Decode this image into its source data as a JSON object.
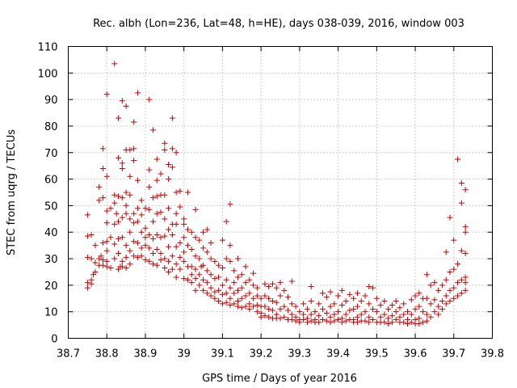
{
  "chart_data": {
    "type": "scatter",
    "title": "Rec. albh (Lon=236, Lat=48, h=HE), days 038-039, 2016, window 003",
    "xlabel": "GPS time / Days of year 2016",
    "ylabel": "STEC from uqrg / TECUs",
    "xlim": [
      38.7,
      39.8
    ],
    "ylim": [
      0,
      110
    ],
    "x_ticks": [
      "38.7",
      "38.8",
      "38.9",
      "39",
      "39.1",
      "39.2",
      "39.3",
      "39.4",
      "39.5",
      "39.6",
      "39.7",
      "39.8"
    ],
    "y_ticks": [
      "0",
      "10",
      "20",
      "30",
      "40",
      "50",
      "60",
      "70",
      "80",
      "90",
      "100",
      "110"
    ],
    "grid": true,
    "marker": "+",
    "color": "#cc0000",
    "points": [
      [
        38.75,
        46.5
      ],
      [
        38.75,
        38.5
      ],
      [
        38.75,
        30.5
      ],
      [
        38.75,
        21
      ],
      [
        38.75,
        19
      ],
      [
        38.76,
        39
      ],
      [
        38.76,
        30
      ],
      [
        38.76,
        22
      ],
      [
        38.76,
        20.5
      ],
      [
        38.765,
        24
      ],
      [
        38.77,
        35
      ],
      [
        38.77,
        28.5
      ],
      [
        38.77,
        25
      ],
      [
        38.78,
        57
      ],
      [
        38.78,
        52
      ],
      [
        38.78,
        30
      ],
      [
        38.78,
        27.5
      ],
      [
        38.785,
        31
      ],
      [
        38.79,
        71.5
      ],
      [
        38.79,
        64
      ],
      [
        38.79,
        53
      ],
      [
        38.79,
        36
      ],
      [
        38.79,
        29.5
      ],
      [
        38.79,
        27.5
      ],
      [
        38.8,
        92
      ],
      [
        38.8,
        61
      ],
      [
        38.8,
        48
      ],
      [
        38.8,
        43.5
      ],
      [
        38.8,
        36.5
      ],
      [
        38.8,
        33
      ],
      [
        38.8,
        29
      ],
      [
        38.8,
        27
      ],
      [
        38.81,
        49
      ],
      [
        38.81,
        38
      ],
      [
        38.81,
        26.5
      ],
      [
        38.82,
        103.5
      ],
      [
        38.82,
        54
      ],
      [
        38.82,
        51
      ],
      [
        38.82,
        43
      ],
      [
        38.82,
        35.5
      ],
      [
        38.82,
        30
      ],
      [
        38.825,
        47
      ],
      [
        38.83,
        83
      ],
      [
        38.83,
        68
      ],
      [
        38.83,
        53.5
      ],
      [
        38.83,
        44
      ],
      [
        38.83,
        37.5
      ],
      [
        38.83,
        32
      ],
      [
        38.83,
        26
      ],
      [
        38.835,
        27
      ],
      [
        38.84,
        89.5
      ],
      [
        38.84,
        66
      ],
      [
        38.84,
        64
      ],
      [
        38.84,
        53
      ],
      [
        38.84,
        45.5
      ],
      [
        38.84,
        38
      ],
      [
        38.84,
        29
      ],
      [
        38.84,
        27
      ],
      [
        38.85,
        87.5
      ],
      [
        38.85,
        71
      ],
      [
        38.85,
        55
      ],
      [
        38.85,
        50
      ],
      [
        38.85,
        47
      ],
      [
        38.85,
        35
      ],
      [
        38.85,
        30.5
      ],
      [
        38.85,
        26.5
      ],
      [
        38.86,
        71
      ],
      [
        38.86,
        61
      ],
      [
        38.86,
        54
      ],
      [
        38.86,
        45
      ],
      [
        38.86,
        40
      ],
      [
        38.86,
        33
      ],
      [
        38.86,
        28
      ],
      [
        38.87,
        81.5
      ],
      [
        38.87,
        71.5
      ],
      [
        38.87,
        67
      ],
      [
        38.87,
        47
      ],
      [
        38.87,
        43.5
      ],
      [
        38.87,
        36.5
      ],
      [
        38.87,
        31
      ],
      [
        38.88,
        92.5
      ],
      [
        38.88,
        59.5
      ],
      [
        38.88,
        49
      ],
      [
        38.88,
        44
      ],
      [
        38.88,
        36
      ],
      [
        38.88,
        30.5
      ],
      [
        38.89,
        52
      ],
      [
        38.89,
        46.5
      ],
      [
        38.89,
        40
      ],
      [
        38.89,
        34
      ],
      [
        38.89,
        31
      ],
      [
        38.9,
        49
      ],
      [
        38.9,
        41.5
      ],
      [
        38.9,
        38
      ],
      [
        38.9,
        35
      ],
      [
        38.9,
        29.5
      ],
      [
        38.91,
        90
      ],
      [
        38.91,
        63.5
      ],
      [
        38.91,
        57
      ],
      [
        38.91,
        48.5
      ],
      [
        38.91,
        39
      ],
      [
        38.91,
        34
      ],
      [
        38.91,
        29
      ],
      [
        38.92,
        78.5
      ],
      [
        38.92,
        53
      ],
      [
        38.92,
        44
      ],
      [
        38.92,
        37.5
      ],
      [
        38.92,
        32
      ],
      [
        38.92,
        28
      ],
      [
        38.93,
        67.5
      ],
      [
        38.93,
        59.5
      ],
      [
        38.93,
        53.5
      ],
      [
        38.93,
        47
      ],
      [
        38.93,
        39
      ],
      [
        38.93,
        33.5
      ],
      [
        38.93,
        27.5
      ],
      [
        38.94,
        62
      ],
      [
        38.94,
        54
      ],
      [
        38.94,
        47.5
      ],
      [
        38.94,
        38
      ],
      [
        38.94,
        32
      ],
      [
        38.94,
        29.5
      ],
      [
        38.95,
        73.5
      ],
      [
        38.95,
        71
      ],
      [
        38.95,
        54
      ],
      [
        38.95,
        45
      ],
      [
        38.95,
        38.5
      ],
      [
        38.95,
        30
      ],
      [
        38.95,
        26.5
      ],
      [
        38.96,
        65.5
      ],
      [
        38.96,
        60
      ],
      [
        38.96,
        49
      ],
      [
        38.96,
        41
      ],
      [
        38.96,
        34.5
      ],
      [
        38.96,
        29
      ],
      [
        38.96,
        25
      ],
      [
        38.97,
        83
      ],
      [
        38.97,
        71.5
      ],
      [
        38.97,
        64.5
      ],
      [
        38.97,
        43
      ],
      [
        38.97,
        39
      ],
      [
        38.97,
        31
      ],
      [
        38.97,
        26
      ],
      [
        38.98,
        70
      ],
      [
        38.98,
        55
      ],
      [
        38.98,
        47
      ],
      [
        38.98,
        43
      ],
      [
        38.98,
        34.5
      ],
      [
        38.98,
        28
      ],
      [
        38.98,
        23
      ],
      [
        38.99,
        55.5
      ],
      [
        38.99,
        49.5
      ],
      [
        38.99,
        36
      ],
      [
        38.99,
        30.5
      ],
      [
        38.99,
        26
      ],
      [
        39.0,
        45
      ],
      [
        39.0,
        43
      ],
      [
        39.0,
        38
      ],
      [
        39.0,
        32.5
      ],
      [
        39.0,
        29
      ],
      [
        39.0,
        22.5
      ],
      [
        39.01,
        55
      ],
      [
        39.01,
        41
      ],
      [
        39.01,
        35
      ],
      [
        39.01,
        27
      ],
      [
        39.01,
        22
      ],
      [
        39.02,
        40
      ],
      [
        39.02,
        33.5
      ],
      [
        39.02,
        27
      ],
      [
        39.02,
        24
      ],
      [
        39.02,
        21
      ],
      [
        39.03,
        48.5
      ],
      [
        39.03,
        38
      ],
      [
        39.03,
        31
      ],
      [
        39.03,
        26
      ],
      [
        39.03,
        22.5
      ],
      [
        39.03,
        18
      ],
      [
        39.04,
        37
      ],
      [
        39.04,
        30
      ],
      [
        39.04,
        24
      ],
      [
        39.04,
        20
      ],
      [
        39.045,
        27
      ],
      [
        39.05,
        40
      ],
      [
        39.05,
        34
      ],
      [
        39.05,
        27.5
      ],
      [
        39.05,
        22
      ],
      [
        39.05,
        18
      ],
      [
        39.06,
        41
      ],
      [
        39.06,
        32.5
      ],
      [
        39.06,
        25.5
      ],
      [
        39.06,
        21
      ],
      [
        39.06,
        17
      ],
      [
        39.07,
        36
      ],
      [
        39.07,
        30
      ],
      [
        39.07,
        24
      ],
      [
        39.07,
        19
      ],
      [
        39.07,
        16
      ],
      [
        39.08,
        29
      ],
      [
        39.08,
        22.5
      ],
      [
        39.08,
        17.5
      ],
      [
        39.08,
        15
      ],
      [
        39.09,
        27.5
      ],
      [
        39.09,
        23
      ],
      [
        39.09,
        18
      ],
      [
        39.09,
        14
      ],
      [
        39.1,
        37
      ],
      [
        39.1,
        26.5
      ],
      [
        39.1,
        20
      ],
      [
        39.1,
        16.5
      ],
      [
        39.1,
        13
      ],
      [
        39.11,
        44
      ],
      [
        39.11,
        30
      ],
      [
        39.11,
        22
      ],
      [
        39.11,
        17
      ],
      [
        39.11,
        13.5
      ],
      [
        39.12,
        50.5
      ],
      [
        39.12,
        35
      ],
      [
        39.12,
        29
      ],
      [
        39.12,
        19
      ],
      [
        39.12,
        15
      ],
      [
        39.12,
        12.5
      ],
      [
        39.13,
        25.5
      ],
      [
        39.13,
        21
      ],
      [
        39.13,
        17
      ],
      [
        39.13,
        13
      ],
      [
        39.14,
        30
      ],
      [
        39.14,
        23
      ],
      [
        39.14,
        18
      ],
      [
        39.14,
        14
      ],
      [
        39.14,
        12
      ],
      [
        39.15,
        24
      ],
      [
        39.15,
        19
      ],
      [
        39.15,
        15
      ],
      [
        39.15,
        11.5
      ],
      [
        39.16,
        27
      ],
      [
        39.16,
        21
      ],
      [
        39.16,
        16
      ],
      [
        39.16,
        12
      ],
      [
        39.17,
        22
      ],
      [
        39.17,
        17
      ],
      [
        39.17,
        13
      ],
      [
        39.17,
        11
      ],
      [
        39.18,
        24.5
      ],
      [
        39.18,
        20
      ],
      [
        39.18,
        15
      ],
      [
        39.18,
        12
      ],
      [
        39.19,
        19
      ],
      [
        39.19,
        16
      ],
      [
        39.19,
        12.5
      ],
      [
        39.19,
        10
      ],
      [
        39.2,
        15
      ],
      [
        39.2,
        12
      ],
      [
        39.2,
        9.5
      ],
      [
        39.2,
        8
      ],
      [
        39.21,
        20.5
      ],
      [
        39.21,
        16
      ],
      [
        39.21,
        12
      ],
      [
        39.21,
        8.5
      ],
      [
        39.22,
        19.5
      ],
      [
        39.22,
        15
      ],
      [
        39.22,
        11
      ],
      [
        39.22,
        8
      ],
      [
        39.23,
        20.5
      ],
      [
        39.23,
        14
      ],
      [
        39.23,
        10.5
      ],
      [
        39.23,
        7.5
      ],
      [
        39.24,
        19
      ],
      [
        39.24,
        13.5
      ],
      [
        39.24,
        9
      ],
      [
        39.24,
        7.5
      ],
      [
        39.25,
        21
      ],
      [
        39.25,
        16
      ],
      [
        39.25,
        11
      ],
      [
        39.25,
        7.5
      ],
      [
        39.26,
        18
      ],
      [
        39.26,
        12
      ],
      [
        39.26,
        8
      ],
      [
        39.27,
        15.5
      ],
      [
        39.27,
        10.5
      ],
      [
        39.27,
        7
      ],
      [
        39.28,
        21.5
      ],
      [
        39.28,
        13
      ],
      [
        39.28,
        9
      ],
      [
        39.28,
        7
      ],
      [
        39.29,
        12
      ],
      [
        39.29,
        8
      ],
      [
        39.29,
        6.5
      ],
      [
        39.3,
        10
      ],
      [
        39.3,
        7
      ],
      [
        39.3,
        6
      ],
      [
        39.31,
        13
      ],
      [
        39.31,
        9
      ],
      [
        39.31,
        7
      ],
      [
        39.32,
        11
      ],
      [
        39.32,
        7.5
      ],
      [
        39.32,
        6
      ],
      [
        39.33,
        19.5
      ],
      [
        39.33,
        14
      ],
      [
        39.33,
        9
      ],
      [
        39.33,
        6.5
      ],
      [
        39.34,
        10
      ],
      [
        39.34,
        7
      ],
      [
        39.34,
        6
      ],
      [
        39.35,
        13
      ],
      [
        39.35,
        8.5
      ],
      [
        39.35,
        6
      ],
      [
        39.36,
        17
      ],
      [
        39.36,
        11
      ],
      [
        39.36,
        7
      ],
      [
        39.37,
        15.5
      ],
      [
        39.37,
        9.5
      ],
      [
        39.37,
        6.5
      ],
      [
        39.38,
        17.5
      ],
      [
        39.38,
        12
      ],
      [
        39.38,
        8
      ],
      [
        39.38,
        6
      ],
      [
        39.39,
        13
      ],
      [
        39.39,
        9
      ],
      [
        39.39,
        6.5
      ],
      [
        39.4,
        16
      ],
      [
        39.4,
        10
      ],
      [
        39.4,
        7
      ],
      [
        39.41,
        18
      ],
      [
        39.41,
        12.5
      ],
      [
        39.41,
        7.5
      ],
      [
        39.41,
        6
      ],
      [
        39.42,
        14
      ],
      [
        39.42,
        9
      ],
      [
        39.42,
        6.5
      ],
      [
        39.43,
        16.5
      ],
      [
        39.43,
        10.5
      ],
      [
        39.43,
        7
      ],
      [
        39.44,
        15
      ],
      [
        39.44,
        11
      ],
      [
        39.44,
        7
      ],
      [
        39.44,
        6
      ],
      [
        39.45,
        17
      ],
      [
        39.45,
        12
      ],
      [
        39.45,
        8
      ],
      [
        39.45,
        6
      ],
      [
        39.46,
        14
      ],
      [
        39.46,
        9
      ],
      [
        39.46,
        6.5
      ],
      [
        39.47,
        16
      ],
      [
        39.47,
        10
      ],
      [
        39.47,
        6.5
      ],
      [
        39.48,
        19.5
      ],
      [
        39.48,
        13
      ],
      [
        39.48,
        8
      ],
      [
        39.48,
        6
      ],
      [
        39.49,
        19
      ],
      [
        39.49,
        11
      ],
      [
        39.49,
        7
      ],
      [
        39.5,
        15
      ],
      [
        39.5,
        10
      ],
      [
        39.5,
        6
      ],
      [
        39.51,
        12.5
      ],
      [
        39.51,
        8
      ],
      [
        39.51,
        6
      ],
      [
        39.52,
        14
      ],
      [
        39.52,
        9
      ],
      [
        39.52,
        6
      ],
      [
        39.53,
        11
      ],
      [
        39.53,
        7.5
      ],
      [
        39.53,
        5.5
      ],
      [
        39.54,
        12.5
      ],
      [
        39.54,
        8.5
      ],
      [
        39.54,
        6
      ],
      [
        39.55,
        14
      ],
      [
        39.55,
        10
      ],
      [
        39.55,
        7
      ],
      [
        39.56,
        11.5
      ],
      [
        39.56,
        8
      ],
      [
        39.56,
        6
      ],
      [
        39.57,
        13
      ],
      [
        39.57,
        9
      ],
      [
        39.57,
        6
      ],
      [
        39.58,
        10
      ],
      [
        39.58,
        7
      ],
      [
        39.58,
        5.5
      ],
      [
        39.59,
        14.5
      ],
      [
        39.59,
        9
      ],
      [
        39.59,
        6
      ],
      [
        39.6,
        16
      ],
      [
        39.6,
        11
      ],
      [
        39.6,
        7
      ],
      [
        39.6,
        5.5
      ],
      [
        39.61,
        17
      ],
      [
        39.61,
        12
      ],
      [
        39.61,
        7.5
      ],
      [
        39.61,
        5.5
      ],
      [
        39.62,
        15
      ],
      [
        39.62,
        10
      ],
      [
        39.62,
        6
      ],
      [
        39.63,
        24
      ],
      [
        39.63,
        15
      ],
      [
        39.63,
        9
      ],
      [
        39.63,
        6.5
      ],
      [
        39.64,
        20
      ],
      [
        39.64,
        13
      ],
      [
        39.64,
        8
      ],
      [
        39.65,
        21
      ],
      [
        39.65,
        14.5
      ],
      [
        39.65,
        10
      ],
      [
        39.66,
        18
      ],
      [
        39.66,
        12
      ],
      [
        39.66,
        9
      ],
      [
        39.67,
        20
      ],
      [
        39.67,
        14
      ],
      [
        39.67,
        11
      ],
      [
        39.68,
        32.5
      ],
      [
        39.68,
        22
      ],
      [
        39.68,
        16
      ],
      [
        39.68,
        13
      ],
      [
        39.69,
        45.5
      ],
      [
        39.69,
        25
      ],
      [
        39.69,
        18
      ],
      [
        39.69,
        14
      ],
      [
        39.7,
        37
      ],
      [
        39.7,
        26
      ],
      [
        39.7,
        19
      ],
      [
        39.7,
        15
      ],
      [
        39.71,
        67.5
      ],
      [
        39.71,
        28
      ],
      [
        39.71,
        21
      ],
      [
        39.71,
        16
      ],
      [
        39.72,
        58.5
      ],
      [
        39.72,
        51
      ],
      [
        39.72,
        33
      ],
      [
        39.72,
        22
      ],
      [
        39.72,
        17
      ],
      [
        39.73,
        56
      ],
      [
        39.73,
        42
      ],
      [
        39.73,
        40
      ],
      [
        39.73,
        32
      ],
      [
        39.73,
        23
      ],
      [
        39.73,
        21
      ],
      [
        39.73,
        18
      ]
    ]
  }
}
